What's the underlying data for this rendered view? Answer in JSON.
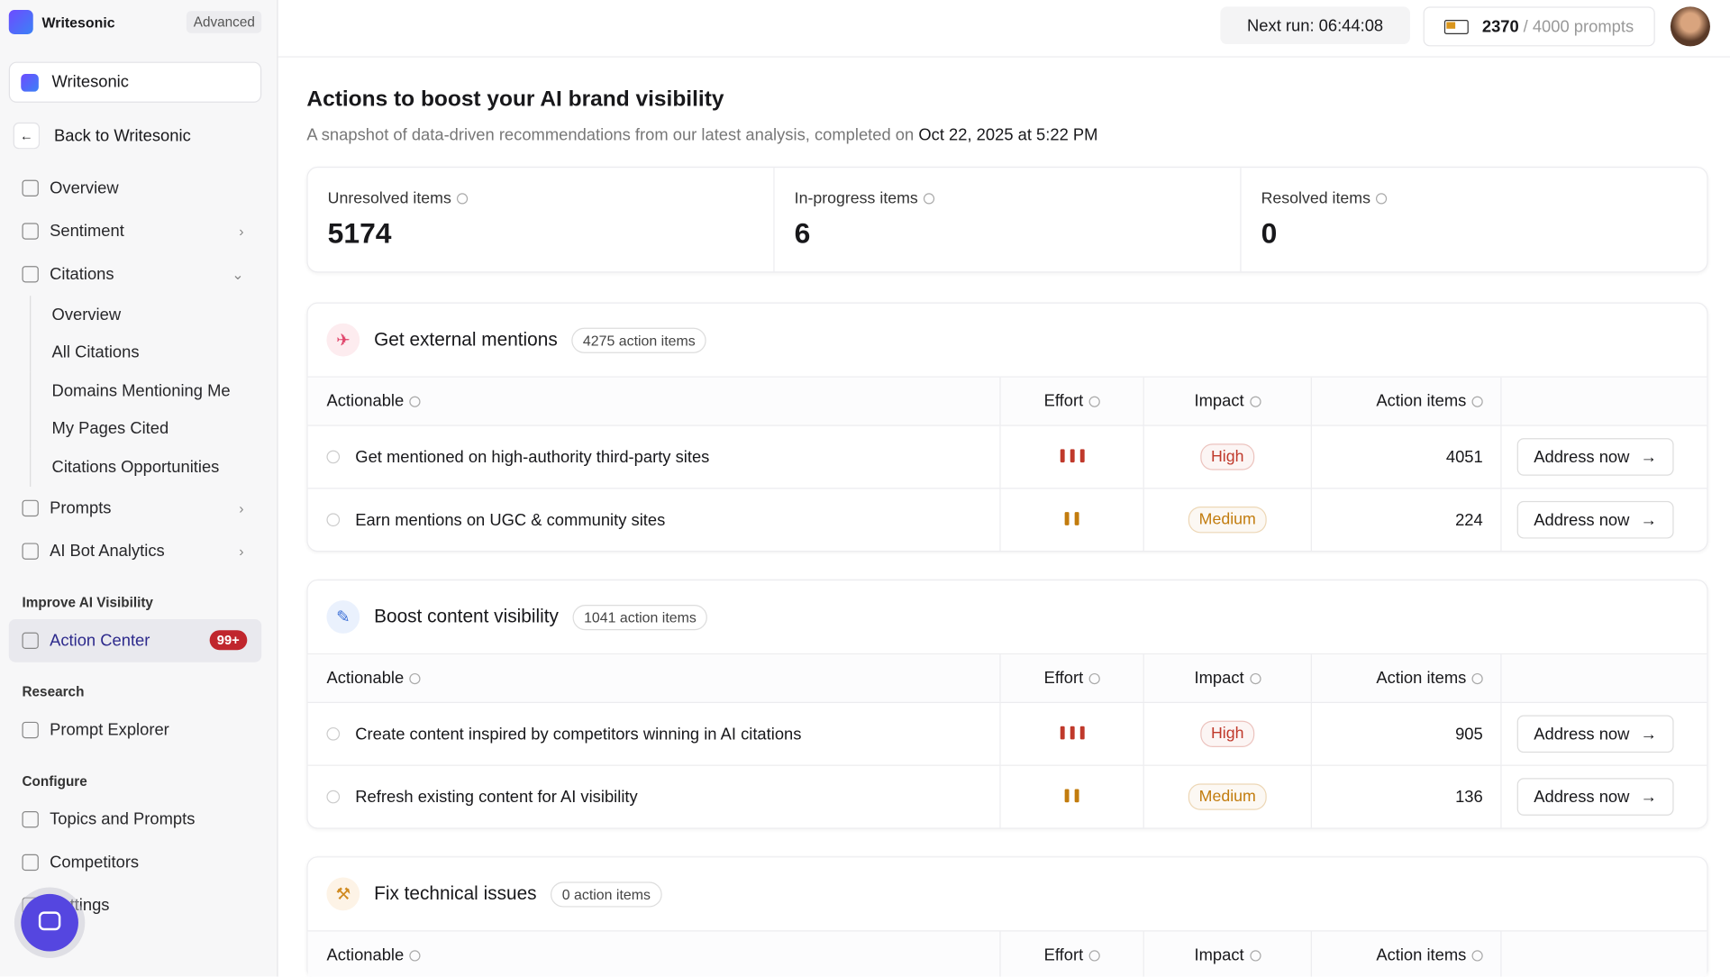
{
  "sidebar": {
    "brand": "Writesonic",
    "plan": "Advanced",
    "workspace": "Writesonic",
    "back": "Back to Writesonic",
    "nav": [
      {
        "label": "Overview"
      },
      {
        "label": "Sentiment"
      },
      {
        "label": "Citations",
        "children": [
          "Overview",
          "All Citations",
          "Domains Mentioning Me",
          "My Pages Cited",
          "Citations Opportunities"
        ]
      },
      {
        "label": "Prompts"
      },
      {
        "label": "AI Bot Analytics"
      }
    ],
    "groups": [
      {
        "title": "Improve AI Visibility",
        "items": [
          {
            "label": "Action Center",
            "badge": "99+"
          }
        ]
      },
      {
        "title": "Research",
        "items": [
          {
            "label": "Prompt Explorer"
          }
        ]
      },
      {
        "title": "Configure",
        "items": [
          {
            "label": "Topics and Prompts"
          },
          {
            "label": "Competitors"
          },
          {
            "label": "Settings"
          }
        ]
      }
    ]
  },
  "topbar": {
    "next_run": "Next run: 06:44:08",
    "prompts_used": 2370,
    "prompts_total": "/ 4000 prompts"
  },
  "header": {
    "title": "Actions to boost your AI brand visibility",
    "subtitle": "A snapshot of data-driven recommendations from our latest analysis, completed on",
    "date": "Oct 22, 2025 at 5:22 PM"
  },
  "stats": [
    {
      "label": "Unresolved items",
      "value": 5174
    },
    {
      "label": "In-progress items",
      "value": 6
    },
    {
      "label": "Resolved items",
      "value": 0
    }
  ],
  "sections": [
    {
      "title": "Get external mentions",
      "count": "4275 action items",
      "columns": [
        "Actionable",
        "Effort",
        "Impact",
        "Action items"
      ],
      "rows": [
        {
          "title": "Get mentioned on high-authority third-party sites",
          "effort": 3,
          "impact": "High",
          "color": "#c0392b",
          "action_items": 4051,
          "button": "Address now"
        },
        {
          "title": "Earn mentions on UGC & community sites",
          "effort": 2,
          "impact": "Medium",
          "color": "#c27c0e",
          "action_items": 224,
          "button": "Address now"
        }
      ]
    },
    {
      "title": "Boost content visibility",
      "count": "1041 action items",
      "columns": [
        "Actionable",
        "Effort",
        "Impact",
        "Action items"
      ],
      "rows": [
        {
          "title": "Create content inspired by competitors winning in AI citations",
          "effort": 3,
          "impact": "High",
          "color": "#c0392b",
          "action_items": 905,
          "button": "Address now"
        },
        {
          "title": "Refresh existing content for AI visibility",
          "effort": 2,
          "impact": "Medium",
          "color": "#c27c0e",
          "action_items": 136,
          "button": "Address now"
        }
      ]
    },
    {
      "title": "Fix technical issues",
      "count": "0 action items",
      "columns": [
        "Actionable",
        "Effort",
        "Impact",
        "Action items"
      ],
      "rows": []
    }
  ]
}
